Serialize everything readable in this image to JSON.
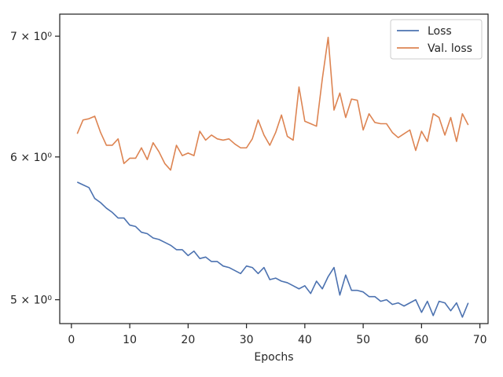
{
  "chart_data": {
    "type": "line",
    "title": "",
    "xlabel": "Epochs",
    "ylabel": "",
    "yscale": "log",
    "xlim": [
      -2,
      71.4
    ],
    "ylim": [
      4.85,
      7.2
    ],
    "xticks": [
      0,
      10,
      20,
      30,
      40,
      50,
      60,
      70
    ],
    "xtick_labels": [
      "0",
      "10",
      "20",
      "30",
      "40",
      "50",
      "60",
      "70"
    ],
    "yticks": [
      5,
      6,
      7
    ],
    "ytick_labels": [
      "5 × 10⁰",
      "6 × 10⁰",
      "7 × 10⁰"
    ],
    "grid": false,
    "legend_position": "top-right",
    "x": [
      1,
      2,
      3,
      4,
      5,
      6,
      7,
      8,
      9,
      10,
      11,
      12,
      13,
      14,
      15,
      16,
      17,
      18,
      19,
      20,
      21,
      22,
      23,
      24,
      25,
      26,
      27,
      28,
      29,
      30,
      31,
      32,
      33,
      34,
      35,
      36,
      37,
      38,
      39,
      40,
      41,
      42,
      43,
      44,
      45,
      46,
      47,
      48,
      49,
      50,
      51,
      52,
      53,
      54,
      55,
      56,
      57,
      58,
      59,
      60,
      61,
      62,
      63,
      64,
      65,
      66,
      67,
      68
    ],
    "series": [
      {
        "name": "Loss",
        "color": "#4c72b0",
        "values": [
          5.81,
          5.79,
          5.77,
          5.69,
          5.66,
          5.62,
          5.59,
          5.55,
          5.55,
          5.5,
          5.49,
          5.45,
          5.44,
          5.41,
          5.4,
          5.38,
          5.36,
          5.33,
          5.33,
          5.29,
          5.32,
          5.27,
          5.28,
          5.25,
          5.25,
          5.22,
          5.21,
          5.19,
          5.17,
          5.22,
          5.21,
          5.17,
          5.21,
          5.13,
          5.14,
          5.12,
          5.11,
          5.09,
          5.07,
          5.09,
          5.04,
          5.12,
          5.07,
          5.15,
          5.21,
          5.03,
          5.16,
          5.06,
          5.06,
          5.05,
          5.02,
          5.02,
          4.99,
          5.0,
          4.97,
          4.98,
          4.96,
          4.98,
          5.0,
          4.92,
          4.99,
          4.9,
          4.99,
          4.98,
          4.93,
          4.98,
          4.89,
          4.98
        ]
      },
      {
        "name": "Val. loss",
        "color": "#dd8452",
        "values": [
          6.18,
          6.29,
          6.3,
          6.32,
          6.19,
          6.09,
          6.09,
          6.14,
          5.95,
          5.99,
          5.99,
          6.07,
          5.98,
          6.11,
          6.04,
          5.95,
          5.9,
          6.09,
          6.01,
          6.03,
          6.01,
          6.2,
          6.13,
          6.17,
          6.14,
          6.13,
          6.14,
          6.1,
          6.07,
          6.07,
          6.14,
          6.29,
          6.17,
          6.09,
          6.19,
          6.33,
          6.16,
          6.13,
          6.56,
          6.28,
          6.26,
          6.24,
          6.63,
          6.99,
          6.37,
          6.51,
          6.31,
          6.46,
          6.45,
          6.21,
          6.34,
          6.27,
          6.26,
          6.26,
          6.19,
          6.15,
          6.18,
          6.21,
          6.05,
          6.2,
          6.12,
          6.34,
          6.31,
          6.17,
          6.31,
          6.12,
          6.34,
          6.25
        ]
      }
    ]
  }
}
